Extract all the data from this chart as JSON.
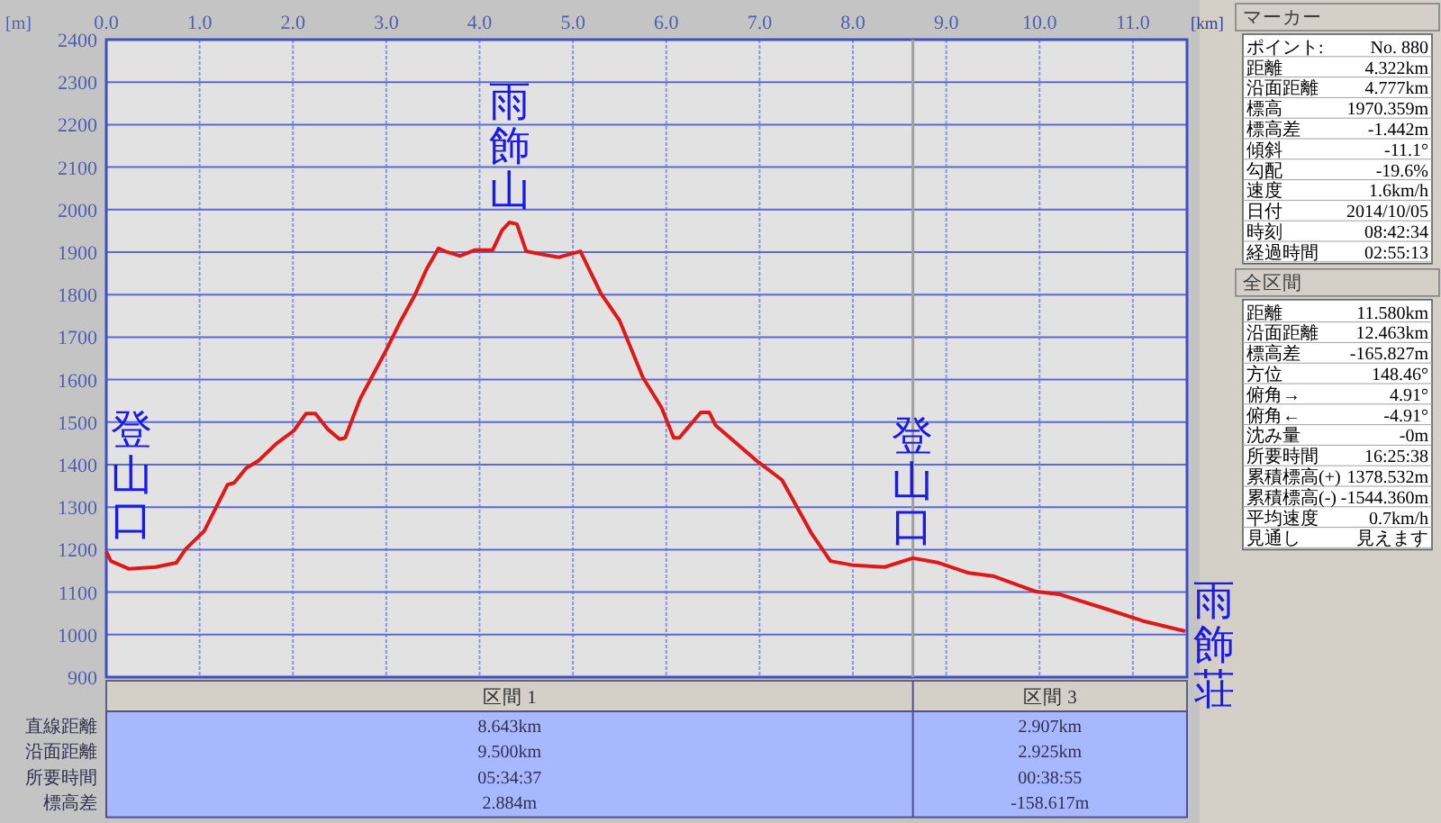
{
  "chart_data": [
    {
      "type": "line",
      "xlabel": "[km]",
      "ylabel": "[m]",
      "xlim": [
        0,
        11.58
      ],
      "ylim": [
        900,
        2400
      ],
      "xticks": [
        {
          "value": 0,
          "label": "0.0"
        },
        {
          "value": 1,
          "label": "1.0"
        },
        {
          "value": 2,
          "label": "2.0"
        },
        {
          "value": 3,
          "label": "3.0"
        },
        {
          "value": 4,
          "label": "4.0"
        },
        {
          "value": 5,
          "label": "5.0"
        },
        {
          "value": 6,
          "label": "6.0"
        },
        {
          "value": 7,
          "label": "7.0"
        },
        {
          "value": 8,
          "label": "8.0"
        },
        {
          "value": 9,
          "label": "9.0"
        },
        {
          "value": 10,
          "label": "10.0"
        },
        {
          "value": 11,
          "label": "11.0"
        }
      ],
      "yticks": [
        900,
        1000,
        1100,
        1200,
        1300,
        1400,
        1500,
        1600,
        1700,
        1800,
        1900,
        2000,
        2100,
        2200,
        2300,
        2400
      ],
      "grid": true,
      "series": [
        {
          "color": "#e01818",
          "x": [
            0,
            0.05,
            0.24,
            0.53,
            0.75,
            0.85,
            1.05,
            1.3,
            1.37,
            1.5,
            1.63,
            1.82,
            2.01,
            2.14,
            2.24,
            2.37,
            2.5,
            2.56,
            2.72,
            2.98,
            3.14,
            3.3,
            3.43,
            3.56,
            3.63,
            3.79,
            3.95,
            4.14,
            4.24,
            4.32,
            4.4,
            4.5,
            4.66,
            4.85,
            5.08,
            5.3,
            5.5,
            5.75,
            5.95,
            6.08,
            6.14,
            6.37,
            6.46,
            6.53,
            6.98,
            7.24,
            7.56,
            7.76,
            8.01,
            8.34,
            8.64,
            8.92,
            9.24,
            9.5,
            9.95,
            10.21,
            10.72,
            11.11,
            11.56
          ],
          "values": [
            1195,
            1173,
            1155,
            1159,
            1169,
            1201,
            1244,
            1353,
            1357,
            1392,
            1409,
            1449,
            1480,
            1520,
            1520,
            1484,
            1460,
            1463,
            1555,
            1661,
            1732,
            1796,
            1859,
            1909,
            1902,
            1891,
            1905,
            1905,
            1951,
            1970,
            1966,
            1902,
            1895,
            1888,
            1902,
            1803,
            1739,
            1605,
            1534,
            1463,
            1463,
            1523,
            1523,
            1492,
            1407,
            1364,
            1237,
            1173,
            1163,
            1159,
            1180,
            1169,
            1145,
            1138,
            1102,
            1095,
            1060,
            1032,
            1008
          ]
        }
      ],
      "ref_lines": [
        {
          "axis": "x",
          "value": 8.643,
          "color": "#a0a0a0"
        }
      ],
      "annotations": [
        {
          "text": "登山口",
          "x": 0,
          "y": 1195
        },
        {
          "text": "雨飾山",
          "x": 4.32,
          "y": 1970
        },
        {
          "text": "登山口",
          "x": 8.64,
          "y": 1180
        },
        {
          "text": "雨飾荘",
          "x": 11.58,
          "y": 1008
        }
      ]
    },
    {
      "type": "other",
      "title": "マーカー",
      "annotations": [
        "ポイント:",
        "No. 880",
        "距離",
        "4.322km",
        "沿面距離",
        "4.777km",
        "標高",
        "1970.359m",
        "標高差",
        "-1.442m",
        "傾斜",
        "-11.1°",
        "勾配",
        "-19.6%",
        "速度",
        "1.6km/h",
        "日付",
        "2014/10/05",
        "時刻",
        "08:42:34",
        "経過時間",
        "02:55:13"
      ]
    },
    {
      "type": "other",
      "title": "全区間",
      "annotations": [
        "距離",
        "11.580km",
        "沿面距離",
        "12.463km",
        "標高差",
        "-165.827m",
        "方位",
        "148.46°",
        "俯角→",
        "4.91°",
        "俯角←",
        "-4.91°",
        "沈み量",
        "-0m",
        "所要時間",
        "16:25:38",
        "累積標高(+)",
        "1378.532m",
        "累積標高(-)",
        "-1544.360m",
        "平均速度",
        "0.7km/h",
        "見通し",
        "見えます"
      ]
    },
    {
      "type": "other",
      "annotations": [
        "区間 1",
        "区間 3",
        "直線距離",
        "8.643km",
        "2.907km",
        "沿面距離",
        "9.500km",
        "2.925km",
        "所要時間",
        "05:34:37",
        "00:38:55",
        "標高差",
        "2.884m",
        "-158.617m"
      ]
    }
  ]
}
